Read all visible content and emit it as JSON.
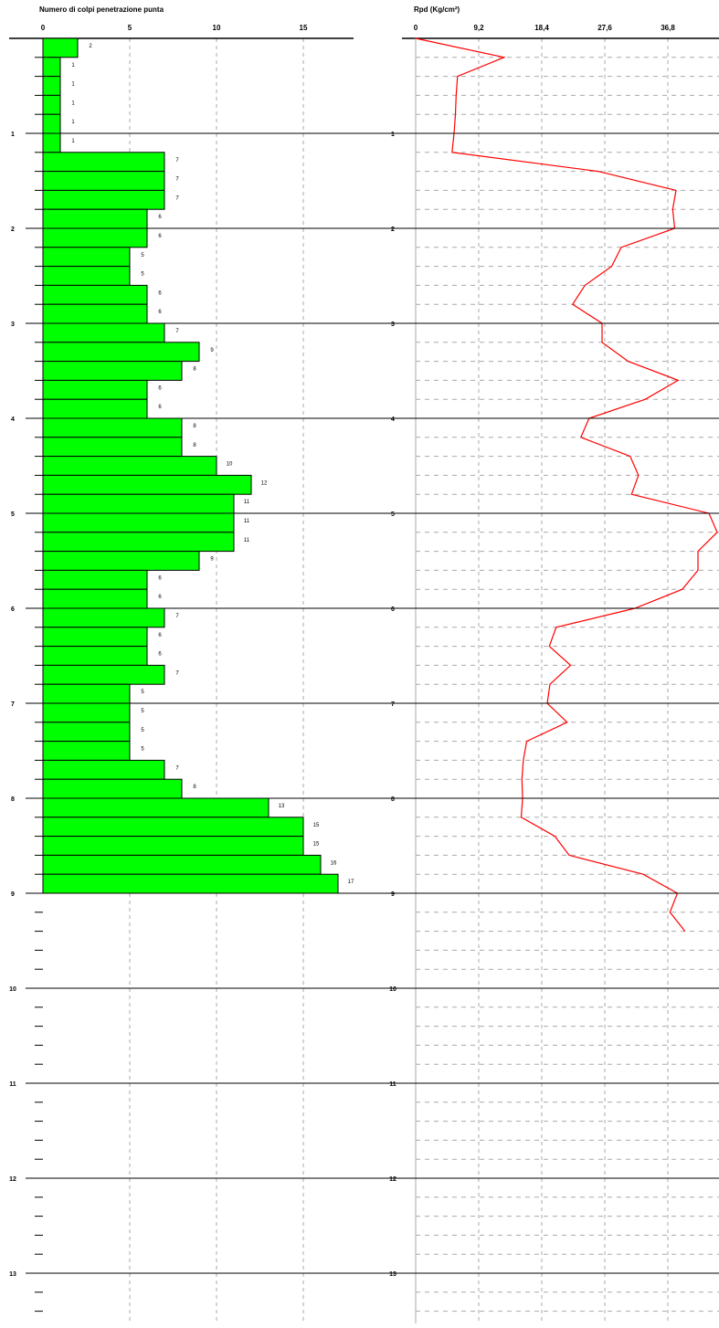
{
  "colors": {
    "bar_fill": "#00ff00",
    "line": "#ff0000",
    "grid": "#aaaaaa",
    "axis": "#000000",
    "background": "#ffffff"
  },
  "chart_data": [
    {
      "type": "bar",
      "orientation": "horizontal",
      "title": "Numero di colpi penetrazione punta",
      "x_ticks": [
        0,
        5,
        10,
        15
      ],
      "xlim": [
        0,
        18
      ],
      "depth_interval": 0.2,
      "depth_ticks": [
        1,
        2,
        3,
        4,
        5,
        6,
        7,
        8,
        9,
        10,
        11,
        12,
        13
      ],
      "depth_range": [
        0,
        13.8
      ],
      "grid": "vertical dashed",
      "values": [
        2,
        1,
        1,
        1,
        1,
        1,
        7,
        7,
        7,
        6,
        6,
        5,
        5,
        6,
        6,
        7,
        9,
        8,
        6,
        6,
        8,
        8,
        10,
        12,
        11,
        11,
        11,
        9,
        6,
        6,
        7,
        6,
        6,
        7,
        5,
        5,
        5,
        5,
        7,
        8,
        13,
        15,
        15,
        16,
        17
      ],
      "value_labels": [
        "2",
        "1",
        "1",
        "1",
        "1",
        "1",
        "7",
        "7",
        "7",
        "6",
        "6",
        "5",
        "5",
        "6",
        "6",
        "7",
        "9",
        "8",
        "6",
        "6",
        "8",
        "8",
        "10",
        "12",
        "11",
        "11",
        "11",
        "9",
        "6",
        "6",
        "7",
        "6",
        "6",
        "7",
        "5",
        "5",
        "5",
        "5",
        "7",
        "8",
        "13",
        "15",
        "15",
        "16",
        "17"
      ]
    },
    {
      "type": "line",
      "title": "Rpd (Kg/cm²)",
      "x_ticks": [
        "0",
        "9,2",
        "18,4",
        "27,6",
        "36,8"
      ],
      "x_tick_values": [
        0,
        9.2,
        18.4,
        27.6,
        36.8
      ],
      "xlim": [
        0,
        44
      ],
      "depth_interval": 0.2,
      "depth_ticks": [
        1,
        2,
        3,
        4,
        5,
        6,
        7,
        8,
        9,
        10,
        11,
        12,
        13
      ],
      "depth_range": [
        0,
        13.8
      ],
      "grid": "vertical and horizontal dashed",
      "values": [
        0,
        12.9,
        6.1,
        5.9,
        5.8,
        5.6,
        5.3,
        26.6,
        38,
        37.5,
        37.8,
        30,
        28.6,
        24.7,
        22.9,
        27.2,
        27.2,
        31,
        38.3,
        33.5,
        25.3,
        24.1,
        31.3,
        32.5,
        31.5,
        42.8,
        44,
        41.2,
        41.2,
        38.9,
        32,
        20.5,
        19.5,
        22.6,
        19.6,
        19.2,
        22.1,
        16.2,
        15.7,
        15.5,
        15.6,
        15.4,
        20.3,
        22.4,
        33.2,
        38.2,
        37.1,
        39.3
      ]
    }
  ]
}
